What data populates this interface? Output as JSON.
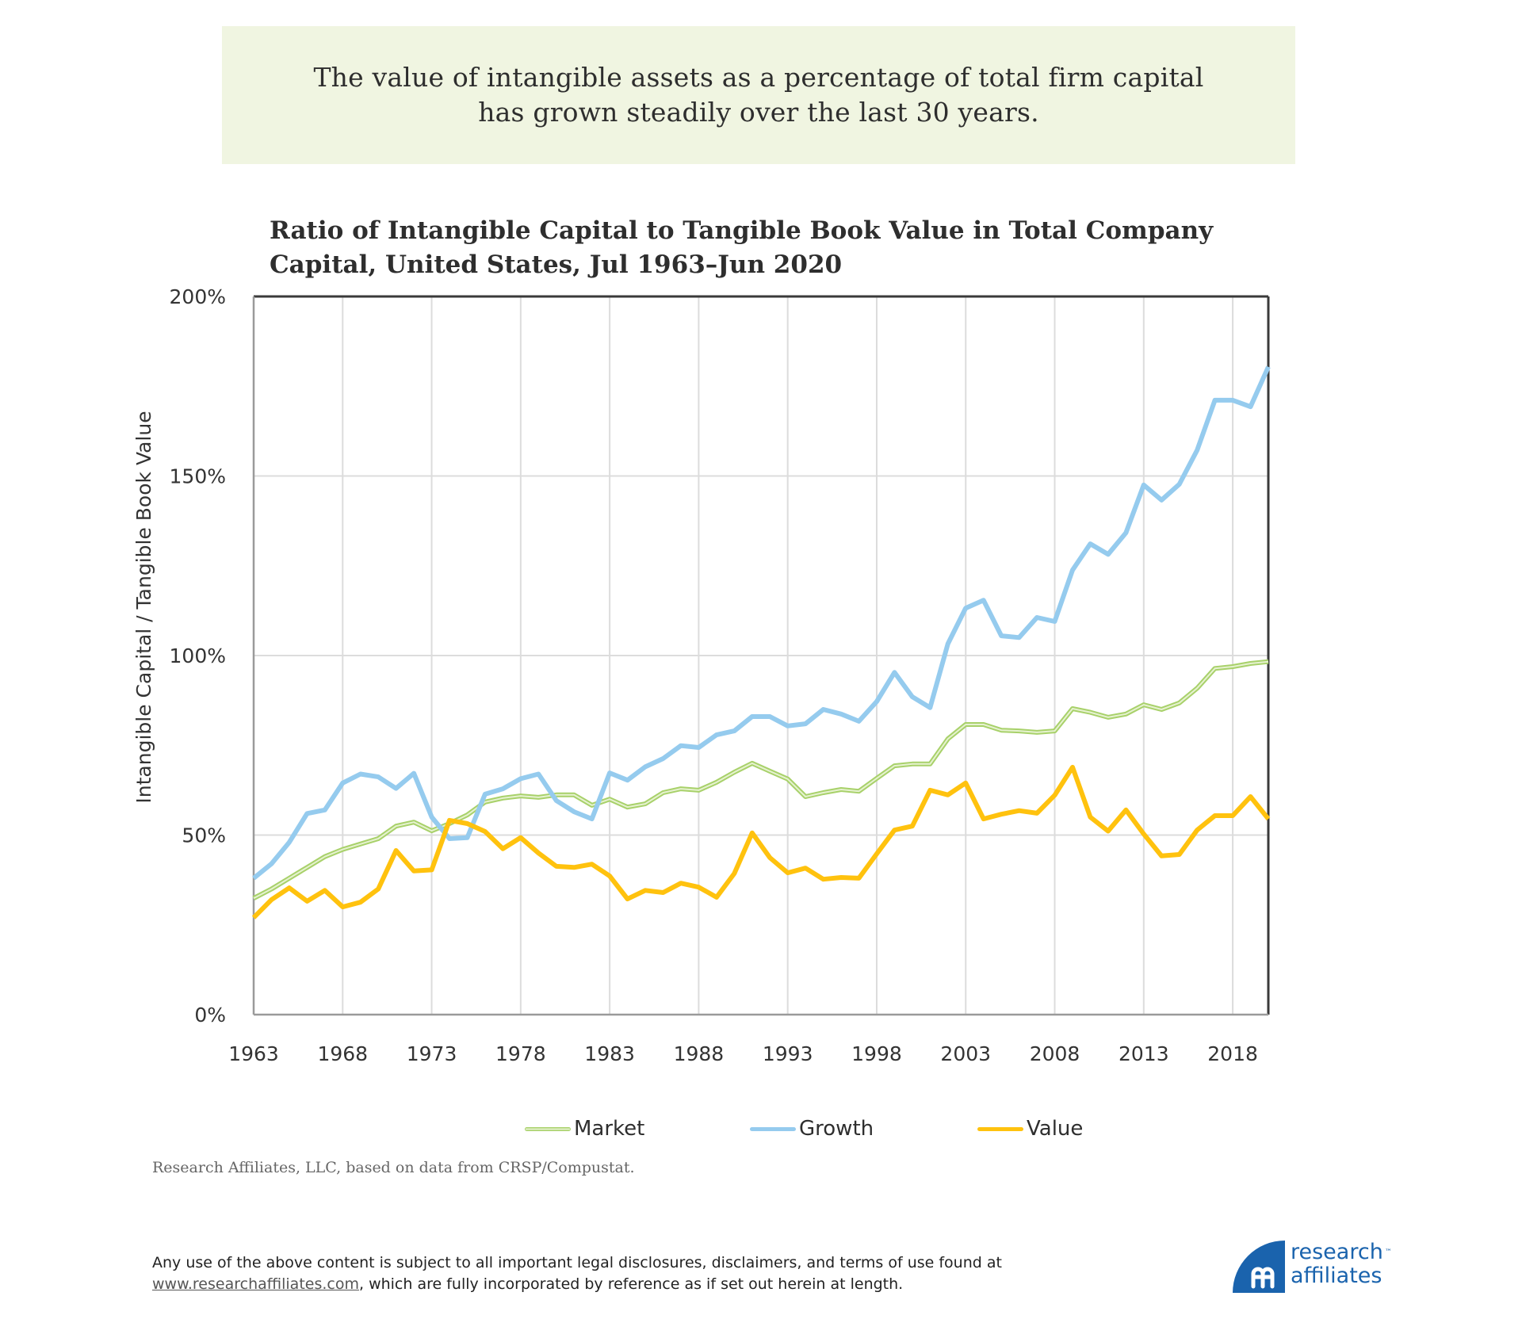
{
  "headline": {
    "lines": [
      "The value of intangible assets as a percentage of total firm capital",
      "has grown steadily over the last 30 years."
    ]
  },
  "chart_data": {
    "type": "line",
    "title": "Ratio of Intangible Capital to Tangible Book Value in Total Company Capital, United States, Jul 1963–Jun 2020",
    "title_lines": [
      "Ratio of Intangible Capital to Tangible Book Value in Total Company",
      "Capital, United States, Jul 1963–Jun 2020"
    ],
    "xlabel": "",
    "ylabel": "Intangible Capital / Tangible Book Value",
    "xlim": [
      1963,
      2020
    ],
    "ylim": [
      0,
      200
    ],
    "x_ticks": [
      1963,
      1968,
      1973,
      1978,
      1983,
      1988,
      1993,
      1998,
      2003,
      2008,
      2013,
      2018
    ],
    "y_ticks": [
      0,
      50,
      100,
      150,
      200
    ],
    "y_tick_labels": [
      "0%",
      "50%",
      "100%",
      "150%",
      "200%"
    ],
    "grid": true,
    "legend_position": "bottom",
    "x": [
      1963,
      1964,
      1965,
      1966,
      1967,
      1968,
      1969,
      1970,
      1971,
      1972,
      1973,
      1974,
      1975,
      1976,
      1977,
      1978,
      1979,
      1980,
      1981,
      1982,
      1983,
      1984,
      1985,
      1986,
      1987,
      1988,
      1989,
      1990,
      1991,
      1992,
      1993,
      1994,
      1995,
      1996,
      1997,
      1998,
      1999,
      2000,
      2001,
      2002,
      2003,
      2004,
      2005,
      2006,
      2007,
      2008,
      2009,
      2010,
      2011,
      2012,
      2013,
      2014,
      2015,
      2016,
      2017,
      2018,
      2019,
      2020
    ],
    "series": [
      {
        "name": "Market",
        "color": "#a8d16a",
        "values": [
          32.4,
          35,
          38,
          41,
          44,
          46,
          47.5,
          49,
          52.5,
          53.6,
          51.2,
          53.2,
          55.6,
          59.2,
          60.3,
          60.9,
          60.5,
          61.2,
          61.2,
          58.3,
          60,
          57.8,
          58.7,
          61.8,
          62.9,
          62.5,
          64.7,
          67.5,
          70,
          67.8,
          65.6,
          60.7,
          61.8,
          62.7,
          62.2,
          65.8,
          69.3,
          69.8,
          69.8,
          76.8,
          80.8,
          80.8,
          79.2,
          79,
          78.6,
          79,
          85.2,
          84.2,
          82.8,
          83.7,
          86.3,
          85,
          86.8,
          90.9,
          96.4,
          96.9,
          97.8,
          98.3
        ]
      },
      {
        "name": "Growth",
        "color": "#95cbee",
        "values": [
          38,
          42,
          48,
          56,
          57,
          64.5,
          67,
          66.2,
          63,
          67.2,
          55,
          49,
          49.3,
          61.4,
          62.9,
          65.7,
          67,
          59.6,
          56.5,
          54.5,
          67.3,
          65.3,
          69,
          71.3,
          74.9,
          74.4,
          77.9,
          79,
          83,
          83,
          80.4,
          81,
          85,
          83.7,
          81.7,
          87.2,
          95.3,
          88.5,
          85.5,
          103.3,
          113.2,
          115.4,
          105.5,
          105,
          110.6,
          109.5,
          123.8,
          131.1,
          128.2,
          134.2,
          147.5,
          143.3,
          147.7,
          157.2,
          171.1,
          171.1,
          169.3,
          180.4
        ]
      },
      {
        "name": "Value",
        "color": "#ffc20e",
        "values": [
          27,
          32,
          35.3,
          31.6,
          34.6,
          30,
          31.3,
          35,
          45.7,
          40,
          40.3,
          54.1,
          53.2,
          51,
          46.2,
          49.3,
          45,
          41.3,
          41,
          41.9,
          38.6,
          32.2,
          34.6,
          34,
          36.6,
          35.5,
          32.7,
          39.3,
          50.6,
          43.7,
          39.5,
          40.8,
          37.7,
          38.2,
          38,
          44.8,
          51.4,
          52.5,
          62.5,
          61.2,
          64.5,
          54.5,
          55.8,
          56.8,
          56.1,
          61.1,
          68.9,
          55,
          51.1,
          57,
          50.3,
          44.2,
          44.6,
          51.4,
          55.4,
          55.4,
          60.7,
          54.5
        ]
      }
    ]
  },
  "legend": {
    "items": [
      {
        "label": "Market",
        "color": "#a8d16a"
      },
      {
        "label": "Growth",
        "color": "#95cbee"
      },
      {
        "label": "Value",
        "color": "#ffc20e"
      }
    ]
  },
  "source_note": "Research Affiliates, LLC, based on data from CRSP/Compustat.",
  "disclaimer": {
    "line1": "Any use of the above content is subject to all important legal disclosures, disclaimers, and terms of use found at",
    "link_text": "www.researchaffiliates.com",
    "line2_rest": ", which are fully incorporated by reference as if set out herein at length."
  },
  "logo": {
    "line1": "research",
    "line2": "affiliates",
    "trademark": "™",
    "icon": "ra-monogram-icon",
    "color": "#1a63ad"
  }
}
